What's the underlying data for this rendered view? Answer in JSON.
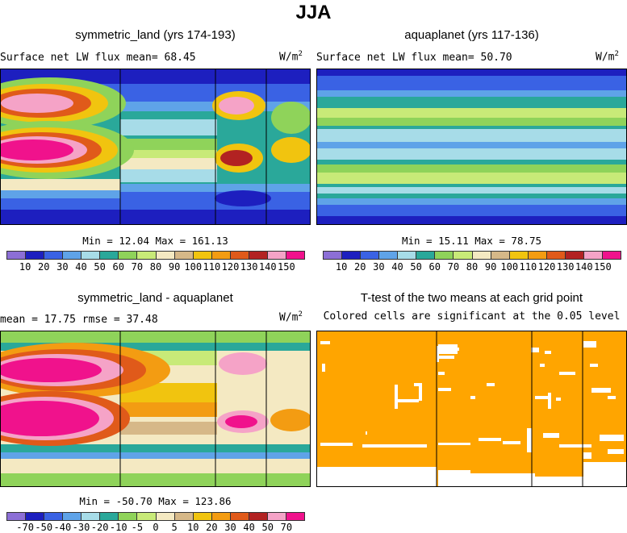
{
  "suptitle": "JJA",
  "colors": {
    "seq": [
      "#8c6fd6",
      "#1d1fbf",
      "#3a62e4",
      "#5fa3e8",
      "#a7dce8",
      "#2aa89a",
      "#8fd35a",
      "#c8ea78",
      "#f4e9c2",
      "#d6b888",
      "#f1c40f",
      "#f39c12",
      "#e05a1a",
      "#b22222",
      "#f5a3c7",
      "#f0128c"
    ],
    "diff": [
      "#8c6fd6",
      "#1d1fbf",
      "#3a62e4",
      "#5fa3e8",
      "#a7dce8",
      "#2aa89a",
      "#8fd35a",
      "#c8ea78",
      "#f4e9c2",
      "#d6b888",
      "#f1c40f",
      "#f39c12",
      "#e05a1a",
      "#b22222",
      "#f5a3c7",
      "#f0128c"
    ],
    "sig": "#ffa500"
  },
  "panels": {
    "sym": {
      "title": "symmetric_land (yrs 174-193)",
      "subtitle": "Surface net LW flux mean=   68.45",
      "units": "W/m",
      "units_exp": "2",
      "stats": "Min =  12.04 Max = 161.13"
    },
    "aqua": {
      "title": "aquaplanet (yrs 117-136)",
      "subtitle": "Surface net LW flux mean=   50.70",
      "units": "W/m",
      "units_exp": "2",
      "stats": "Min =  15.11 Max =  78.75"
    },
    "diff": {
      "title": "symmetric_land - aquaplanet",
      "subtitle": "mean =  17.75     rmse =  37.48",
      "units": "W/m",
      "units_exp": "2",
      "stats": "Min = -50.70 Max = 123.86"
    },
    "ttest": {
      "title": "T-test of the two means at each grid point",
      "subtitle": "Colored cells are significant at the 0.05 level"
    }
  },
  "chart_data": [
    {
      "type": "heatmap",
      "title": "symmetric_land (yrs 174-193)",
      "variable": "Surface net LW flux",
      "mean": 68.45,
      "min": 12.04,
      "max": 161.13,
      "units": "W/m^2",
      "levels": [
        "10",
        "20",
        "30",
        "40",
        "50",
        "60",
        "70",
        "80",
        "90",
        "100",
        "110",
        "120",
        "130",
        "140",
        "150"
      ]
    },
    {
      "type": "heatmap",
      "title": "aquaplanet (yrs 117-136)",
      "variable": "Surface net LW flux",
      "mean": 50.7,
      "min": 15.11,
      "max": 78.75,
      "units": "W/m^2",
      "levels": [
        "10",
        "20",
        "30",
        "40",
        "50",
        "60",
        "70",
        "80",
        "90",
        "100",
        "110",
        "120",
        "130",
        "140",
        "150"
      ]
    },
    {
      "type": "heatmap",
      "title": "symmetric_land - aquaplanet",
      "mean": 17.75,
      "rmse": 37.48,
      "min": -50.7,
      "max": 123.86,
      "units": "W/m^2",
      "levels": [
        "-70",
        "-50",
        "-40",
        "-30",
        "-20",
        "-10",
        "-5",
        "0",
        "5",
        "10",
        "20",
        "30",
        "40",
        "50",
        "70"
      ]
    },
    {
      "type": "heatmap",
      "title": "T-test of the two means at each grid point",
      "note": "Colored cells are significant at the 0.05 level",
      "significance_level": 0.05
    }
  ]
}
